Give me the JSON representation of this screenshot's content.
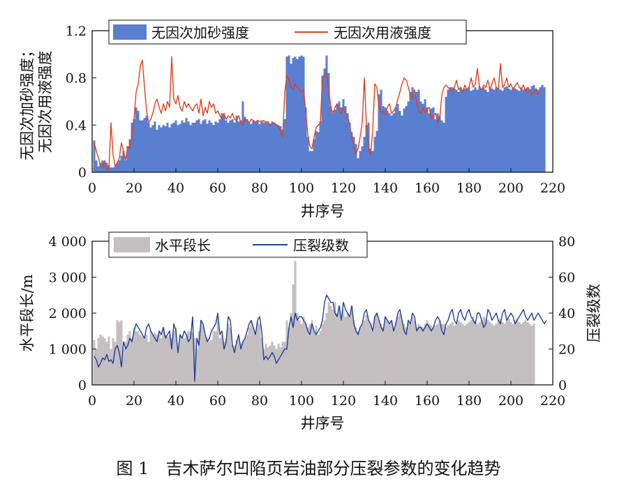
{
  "caption": "图 1　吉木萨尔凹陷页岩油部分压裂参数的变化趋势",
  "chart_data": [
    {
      "type": "bar+line",
      "xlabel": "井序号",
      "ylabel_lines": [
        "无因次加砂强度；",
        "无因次用液强度"
      ],
      "xlim": [
        0,
        220
      ],
      "ylim": [
        0,
        1.2
      ],
      "x_ticks": [
        "0",
        "20",
        "40",
        "60",
        "80",
        "100",
        "120",
        "140",
        "160",
        "180",
        "200",
        "220"
      ],
      "y_ticks": [
        "0",
        "0.4",
        "0.8",
        "1.2"
      ],
      "legend": "top-left",
      "legend_labels": [
        "无因次加砂强度",
        "无因次用液强度"
      ],
      "colors": {
        "bar": "#5b7fd0",
        "line": "#e0401c"
      },
      "series": [
        {
          "name": "无因次加砂强度",
          "kind": "bar",
          "values": [
            0.27,
            0.1,
            0.05,
            0.08,
            0.1,
            0.09,
            0.08,
            0.06,
            0.04,
            0.04,
            0.05,
            0.08,
            0.1,
            0.14,
            0.18,
            0.1,
            0.22,
            0.28,
            0.42,
            0.45,
            0.55,
            0.52,
            0.44,
            0.44,
            0.46,
            0.48,
            0.42,
            0.38,
            0.4,
            0.43,
            0.36,
            0.4,
            0.38,
            0.4,
            0.39,
            0.42,
            0.38,
            0.41,
            0.42,
            0.44,
            0.4,
            0.41,
            0.44,
            0.42,
            0.46,
            0.43,
            0.4,
            0.42,
            0.42,
            0.44,
            0.45,
            0.41,
            0.44,
            0.45,
            0.41,
            0.44,
            0.42,
            0.4,
            0.43,
            0.42,
            0.45,
            0.5,
            0.48,
            0.44,
            0.42,
            0.44,
            0.45,
            0.42,
            0.48,
            0.43,
            0.44,
            0.6,
            0.47,
            0.45,
            0.42,
            0.41,
            0.44,
            0.43,
            0.44,
            0.41,
            0.44,
            0.42,
            0.43,
            0.42,
            0.41,
            0.43,
            0.42,
            0.41,
            0.4,
            0.39,
            0.36,
            0.45,
            0.98,
            0.99,
            0.92,
            0.97,
            0.98,
            0.96,
            0.98,
            0.99,
            0.98,
            0.55,
            0.3,
            0.18,
            0.18,
            0.28,
            0.35,
            0.34,
            0.43,
            0.82,
            0.88,
            0.99,
            0.84,
            0.56,
            0.5,
            0.53,
            0.58,
            0.6,
            0.55,
            0.62,
            0.56,
            0.5,
            0.42,
            0.34,
            0.3,
            0.24,
            0.12,
            0.18,
            0.22,
            0.3,
            0.4,
            0.42,
            0.2,
            0.18,
            0.3,
            0.35,
            0.66,
            0.7,
            0.56,
            0.55,
            0.52,
            0.5,
            0.48,
            0.5,
            0.55,
            0.58,
            0.52,
            0.48,
            0.54,
            0.56,
            0.6,
            0.68,
            0.72,
            0.66,
            0.68,
            0.7,
            0.6,
            0.58,
            0.62,
            0.55,
            0.5,
            0.54,
            0.55,
            0.45,
            0.5,
            0.48,
            0.44,
            0.42,
            0.64,
            0.7,
            0.72,
            0.72,
            0.71,
            0.7,
            0.68,
            0.72,
            0.7,
            0.71,
            0.7,
            0.72,
            0.69,
            0.7,
            0.72,
            0.7,
            0.73,
            0.71,
            0.72,
            0.7,
            0.68,
            0.72,
            0.71,
            0.7,
            0.72,
            0.71,
            0.7,
            0.69,
            0.72,
            0.73,
            0.71,
            0.7,
            0.72,
            0.71,
            0.7,
            0.69,
            0.72,
            0.7,
            0.71,
            0.72,
            0.7,
            0.73,
            0.74,
            0.71,
            0.7,
            0.72,
            0.74,
            0.72
          ]
        },
        {
          "name": "无因次用液强度",
          "kind": "line",
          "values": [
            0.25,
            0.18,
            0.12,
            0.05,
            0.04,
            0.1,
            0.02,
            0.03,
            0.42,
            0.15,
            0.05,
            0.08,
            0.12,
            0.25,
            0.18,
            0.1,
            0.22,
            0.2,
            0.3,
            0.45,
            0.68,
            0.75,
            0.9,
            0.95,
            0.72,
            0.52,
            0.42,
            0.45,
            0.5,
            0.58,
            0.62,
            0.55,
            0.5,
            0.58,
            0.52,
            0.6,
            0.55,
            0.98,
            0.62,
            0.58,
            0.65,
            0.55,
            0.52,
            0.6,
            0.55,
            0.58,
            0.55,
            0.52,
            0.56,
            0.58,
            0.5,
            0.62,
            0.48,
            0.55,
            0.5,
            0.6,
            0.55,
            0.58,
            0.5,
            0.52,
            0.48,
            0.45,
            0.5,
            0.45,
            0.48,
            0.46,
            0.5,
            0.45,
            0.44,
            0.48,
            0.42,
            0.4,
            0.45,
            0.44,
            0.42,
            0.45,
            0.44,
            0.42,
            0.44,
            0.43,
            0.42,
            0.44,
            0.42,
            0.43,
            0.4,
            0.41,
            0.42,
            0.4,
            0.38,
            0.35,
            0.3,
            0.68,
            0.82,
            0.78,
            0.72,
            0.7,
            0.75,
            0.72,
            0.7,
            0.68,
            0.7,
            0.52,
            0.32,
            0.22,
            0.2,
            0.3,
            0.38,
            0.4,
            0.42,
            0.8,
            0.82,
            0.84,
            0.7,
            0.55,
            0.5,
            0.55,
            0.58,
            0.52,
            0.5,
            0.55,
            0.5,
            0.48,
            0.4,
            0.3,
            0.22,
            0.15,
            0.2,
            0.3,
            0.42,
            0.8,
            0.4,
            0.2,
            0.15,
            0.35,
            0.75,
            0.72,
            0.55,
            0.52,
            0.5,
            0.48,
            0.55,
            0.58,
            0.5,
            0.52,
            0.55,
            0.62,
            0.68,
            0.75,
            0.8,
            0.78,
            0.72,
            0.65,
            0.62,
            0.7,
            0.58,
            0.52,
            0.5,
            0.55,
            0.5,
            0.54,
            0.55,
            0.45,
            0.48,
            0.5,
            0.42,
            0.46,
            0.65,
            0.72,
            0.74,
            0.72,
            0.7,
            0.68,
            0.72,
            0.78,
            0.7,
            0.72,
            0.68,
            0.74,
            0.7,
            0.72,
            0.8,
            0.72,
            0.75,
            0.88,
            0.72,
            0.7,
            0.74,
            0.72,
            0.78,
            0.7,
            0.75,
            0.8,
            0.72,
            0.7,
            0.92,
            0.72,
            0.74,
            0.8,
            0.72,
            0.75,
            0.7,
            0.73,
            0.76,
            0.72,
            0.7,
            0.74,
            0.68,
            0.72,
            0.7,
            0.65,
            0.68,
            0.7,
            0.66,
            0.68
          ]
        }
      ]
    },
    {
      "type": "bar+line",
      "xlabel": "井序号",
      "ylabel": "水平段长/m",
      "ylabel_right": "压裂级数",
      "xlim": [
        0,
        220
      ],
      "ylim": [
        0,
        4000
      ],
      "ylim_right": [
        0,
        80
      ],
      "x_ticks": [
        "0",
        "20",
        "40",
        "60",
        "80",
        "100",
        "120",
        "140",
        "160",
        "180",
        "200",
        "220"
      ],
      "y_ticks": [
        "0",
        "1 000",
        "2 000",
        "3 000",
        "4 000"
      ],
      "y_ticks_right": [
        "0",
        "20",
        "40",
        "60",
        "80"
      ],
      "legend": "top-left",
      "legend_labels": [
        "水平段长",
        "压裂级数"
      ],
      "colors": {
        "bar": "#c4bfc0",
        "line": "#1e3f9a"
      },
      "series": [
        {
          "name": "水平段长",
          "kind": "bar",
          "axis": "left",
          "values": [
            1250,
            1000,
            1300,
            1400,
            1350,
            1300,
            1200,
            1350,
            1000,
            1300,
            1200,
            1800,
            1750,
            1800,
            1000,
            1200,
            1400,
            1500,
            1300,
            1600,
            1500,
            1500,
            1400,
            1350,
            1300,
            1400,
            1200,
            1500,
            1400,
            1450,
            1400,
            1500,
            1300,
            1600,
            1400,
            1350,
            1400,
            1300,
            1500,
            1600,
            1000,
            1400,
            1350,
            1300,
            1400,
            1500,
            1500,
            1450,
            1300,
            1000,
            1500,
            1800,
            1650,
            1400,
            1300,
            1200,
            1250,
            1500,
            1500,
            1900,
            1300,
            1400,
            1200,
            1300,
            1700,
            1600,
            1100,
            1100,
            1250,
            1300,
            1150,
            1200,
            1300,
            1400,
            1600,
            1750,
            1600,
            1450,
            1750,
            1700,
            1300,
            1000,
            1150,
            1050,
            1100,
            1200,
            1100,
            1000,
            1150,
            1050,
            1200,
            1200,
            1800,
            1600,
            2000,
            2800,
            3450,
            2000,
            1800,
            1700,
            1900,
            1700,
            1600,
            1700,
            1800,
            1500,
            1650,
            1400,
            1500,
            1700,
            1800,
            2000,
            2300,
            2200,
            2100,
            2300,
            2000,
            2200,
            1800,
            2100,
            1900,
            2000,
            1900,
            2200,
            1800,
            1600,
            1500,
            1600,
            1700,
            1800,
            1950,
            1800,
            1700,
            1500,
            1900,
            2000,
            1800,
            1700,
            1600,
            1900,
            1800,
            1700,
            1800,
            1600,
            1750,
            1900,
            2000,
            1800,
            1700,
            1600,
            1800,
            1700,
            1900,
            1800,
            1600,
            1700,
            1650,
            1600,
            1700,
            1800,
            1700,
            1650,
            1600,
            1650,
            1700,
            1800,
            1700,
            1700,
            1600,
            1650,
            1700,
            1750,
            1650,
            1700,
            1800,
            1750,
            1700,
            1650,
            1700,
            1750,
            1800,
            1900,
            1800,
            1700,
            1750,
            1800,
            1900,
            1850,
            1800,
            1750,
            1700,
            1650,
            1700,
            1800,
            1850,
            1750,
            1700,
            1800,
            1850,
            1750,
            1700,
            1800,
            1850,
            1750,
            1700,
            1750,
            1800,
            1750,
            1700,
            1650,
            1700
          ]
        },
        {
          "name": "压裂级数",
          "kind": "line",
          "axis": "right",
          "values": [
            16,
            14,
            10,
            12,
            15,
            14,
            17,
            13,
            14,
            12,
            20,
            22,
            18,
            10,
            24,
            20,
            22,
            26,
            24,
            30,
            34,
            32,
            30,
            28,
            26,
            32,
            34,
            30,
            28,
            26,
            24,
            30,
            28,
            32,
            26,
            28,
            30,
            20,
            34,
            30,
            18,
            28,
            26,
            30,
            28,
            24,
            26,
            38,
            2,
            26,
            22,
            36,
            34,
            28,
            24,
            26,
            30,
            32,
            34,
            40,
            28,
            30,
            20,
            24,
            38,
            36,
            22,
            18,
            24,
            28,
            20,
            24,
            26,
            30,
            34,
            36,
            32,
            28,
            36,
            38,
            30,
            14,
            16,
            14,
            16,
            18,
            16,
            12,
            14,
            16,
            18,
            20,
            20,
            32,
            38,
            32,
            40,
            36,
            38,
            38,
            36,
            34,
            30,
            28,
            34,
            30,
            28,
            30,
            32,
            36,
            46,
            50,
            48,
            46,
            46,
            40,
            38,
            44,
            36,
            46,
            42,
            40,
            38,
            44,
            34,
            30,
            28,
            32,
            34,
            40,
            42,
            36,
            34,
            30,
            38,
            40,
            36,
            32,
            30,
            38,
            36,
            34,
            36,
            30,
            34,
            40,
            42,
            36,
            30,
            28,
            36,
            34,
            40,
            38,
            30,
            32,
            32,
            30,
            32,
            34,
            32,
            30,
            32,
            36,
            38,
            36,
            30,
            28,
            34,
            36,
            40,
            42,
            36,
            34,
            40,
            42,
            38,
            36,
            40,
            42,
            38,
            36,
            34,
            40,
            40,
            36,
            32,
            34,
            42,
            40,
            36,
            38,
            40,
            36,
            34,
            40,
            42,
            36,
            38,
            40,
            38,
            34,
            36,
            38,
            40,
            42,
            38,
            36,
            38,
            40,
            36,
            38,
            40,
            38,
            36,
            34,
            36
          ]
        }
      ]
    }
  ]
}
